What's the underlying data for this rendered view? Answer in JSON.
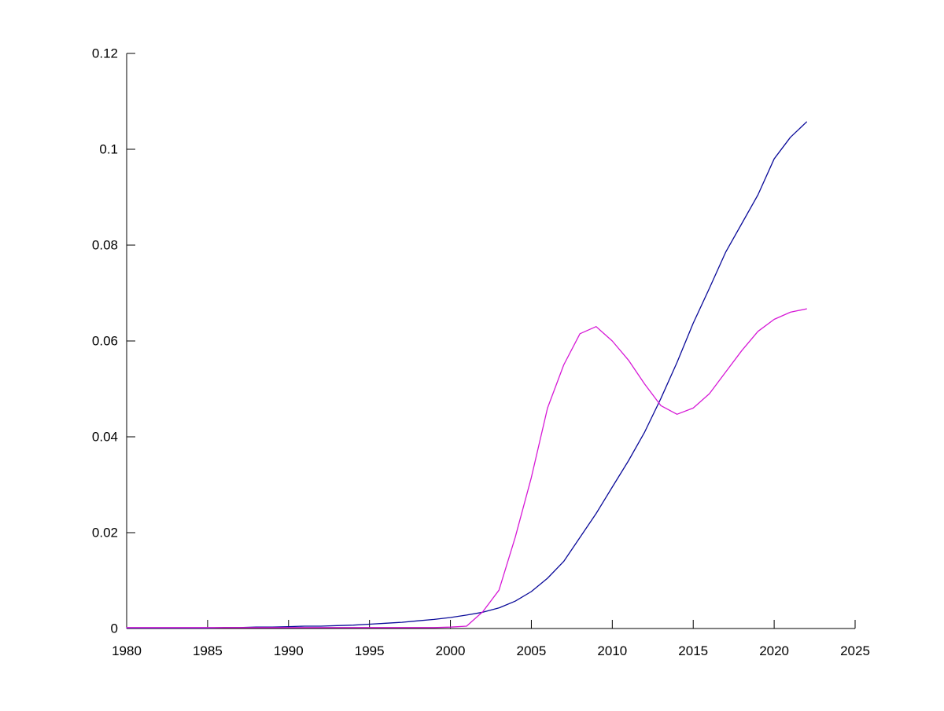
{
  "figure": {
    "background": "#ffffff",
    "axis_color": "#000000"
  },
  "chart_data": {
    "type": "line",
    "title": "",
    "xlabel": "",
    "ylabel": "",
    "xlim": [
      1980,
      2025
    ],
    "ylim": [
      0,
      0.12
    ],
    "xticks": [
      1980,
      1985,
      1990,
      1995,
      2000,
      2005,
      2010,
      2015,
      2020,
      2025
    ],
    "xtick_labels": [
      "1980",
      "1985",
      "1990",
      "1995",
      "2000",
      "2005",
      "2010",
      "2015",
      "2020",
      "2025"
    ],
    "yticks": [
      0,
      0.02,
      0.04,
      0.06,
      0.08,
      0.1,
      0.12
    ],
    "ytick_labels": [
      "0",
      "0.02",
      "0.04",
      "0.06",
      "0.08",
      "0.1",
      "0.12"
    ],
    "grid": false,
    "legend": "none",
    "box": false,
    "x": [
      1980,
      1981,
      1982,
      1983,
      1984,
      1985,
      1986,
      1987,
      1988,
      1989,
      1990,
      1991,
      1992,
      1993,
      1994,
      1995,
      1996,
      1997,
      1998,
      1999,
      2000,
      2001,
      2002,
      2003,
      2004,
      2005,
      2006,
      2007,
      2008,
      2009,
      2010,
      2011,
      2012,
      2013,
      2014,
      2015,
      2016,
      2017,
      2018,
      2019,
      2020,
      2021,
      2022
    ],
    "series": [
      {
        "name": "dark-blue-series",
        "color": "#0a0a99",
        "values": [
          0.0001,
          0.0001,
          0.0001,
          0.0001,
          0.0001,
          0.0001,
          0.0002,
          0.0002,
          0.0003,
          0.0003,
          0.0004,
          0.0005,
          0.0005,
          0.0006,
          0.0007,
          0.0009,
          0.0011,
          0.0013,
          0.0016,
          0.0019,
          0.0023,
          0.0028,
          0.0034,
          0.0043,
          0.0057,
          0.0077,
          0.0105,
          0.014,
          0.019,
          0.024,
          0.0295,
          0.035,
          0.041,
          0.048,
          0.0555,
          0.0637,
          0.071,
          0.0785,
          0.0845,
          0.0905,
          0.098,
          0.1025,
          0.1057
        ]
      },
      {
        "name": "magenta-series",
        "color": "#d619d6",
        "values": [
          0.0002,
          0.0002,
          0.0002,
          0.0002,
          0.0002,
          0.0002,
          0.0002,
          0.0002,
          0.0002,
          0.0002,
          0.0002,
          0.0002,
          0.0002,
          0.0002,
          0.0002,
          0.0002,
          0.0002,
          0.0002,
          0.0002,
          0.0002,
          0.0003,
          0.0005,
          0.0035,
          0.008,
          0.019,
          0.0315,
          0.046,
          0.055,
          0.0615,
          0.063,
          0.06,
          0.056,
          0.051,
          0.0465,
          0.0447,
          0.046,
          0.049,
          0.0535,
          0.058,
          0.062,
          0.0645,
          0.066,
          0.0667
        ]
      }
    ]
  }
}
